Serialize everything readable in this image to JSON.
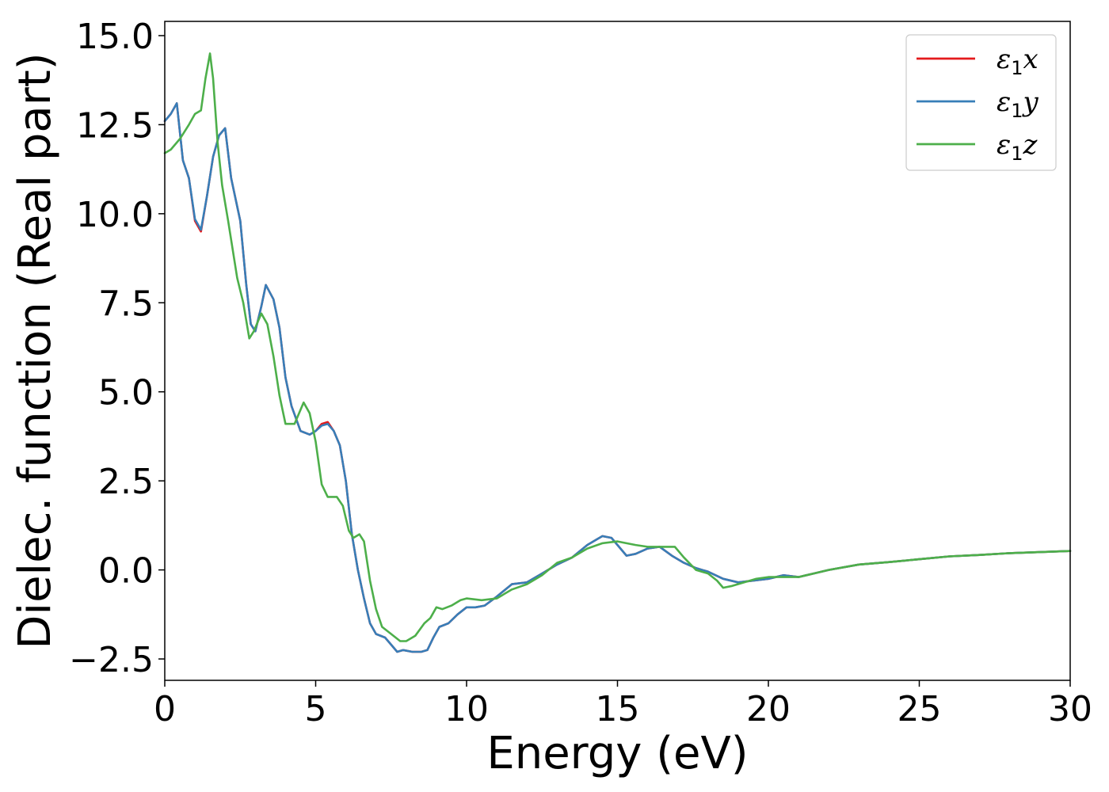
{
  "chart_data": {
    "type": "line",
    "xlabel": "Energy (eV)",
    "ylabel": "Dielec. function (Real part)",
    "xlim": [
      0,
      30
    ],
    "ylim": [
      -3.1,
      15.4
    ],
    "xticks": [
      0,
      5,
      10,
      15,
      20,
      25,
      30
    ],
    "xtick_labels": [
      "0",
      "5",
      "10",
      "15",
      "20",
      "25",
      "30"
    ],
    "yticks": [
      -2.5,
      0.0,
      2.5,
      5.0,
      7.5,
      10.0,
      12.5,
      15.0
    ],
    "ytick_labels": [
      "−2.5",
      "0.0",
      "2.5",
      "5.0",
      "7.5",
      "10.0",
      "12.5",
      "15.0"
    ],
    "grid": false,
    "legend_position": "top-right",
    "series": [
      {
        "name": "ε₁x",
        "legend_base": "ε",
        "legend_sub": "1",
        "legend_var": "x",
        "color": "#e41a1c",
        "x": [
          0,
          0.2,
          0.4,
          0.6,
          0.8,
          1.0,
          1.2,
          1.4,
          1.6,
          1.8,
          2.0,
          2.2,
          2.5,
          2.7,
          2.85,
          3.0,
          3.2,
          3.35,
          3.6,
          3.8,
          4.0,
          4.2,
          4.5,
          4.8,
          5.0,
          5.2,
          5.4,
          5.6,
          5.8,
          6.0,
          6.2,
          6.4,
          6.6,
          6.8,
          7.0,
          7.3,
          7.5,
          7.7,
          7.9,
          8.2,
          8.5,
          8.7,
          8.9,
          9.1,
          9.4,
          9.7,
          10.0,
          10.3,
          10.6,
          11.0,
          11.5,
          12.0,
          12.5,
          13.0,
          13.5,
          14.0,
          14.3,
          14.5,
          14.8,
          15.0,
          15.3,
          15.6,
          16.0,
          16.4,
          16.8,
          17.2,
          17.6,
          18.0,
          18.5,
          19.0,
          19.5,
          20.0,
          20.5,
          21.0,
          21.5,
          22.0,
          23.0,
          24.0,
          25.0,
          26.0,
          27.0,
          28.0,
          29.0,
          30.0
        ],
        "y": [
          12.6,
          12.8,
          13.1,
          11.5,
          11.0,
          9.8,
          9.5,
          10.5,
          11.6,
          12.2,
          12.4,
          11.0,
          9.8,
          8.0,
          6.9,
          6.7,
          7.4,
          8.0,
          7.6,
          6.8,
          5.4,
          4.6,
          3.9,
          3.8,
          3.9,
          4.1,
          4.15,
          3.9,
          3.5,
          2.5,
          1.0,
          0.0,
          -0.8,
          -1.5,
          -1.8,
          -1.9,
          -2.1,
          -2.3,
          -2.25,
          -2.3,
          -2.3,
          -2.25,
          -1.9,
          -1.6,
          -1.5,
          -1.25,
          -1.05,
          -1.05,
          -1.0,
          -0.75,
          -0.4,
          -0.35,
          -0.1,
          0.15,
          0.35,
          0.7,
          0.85,
          0.95,
          0.9,
          0.7,
          0.4,
          0.45,
          0.6,
          0.65,
          0.4,
          0.2,
          0.05,
          -0.05,
          -0.25,
          -0.35,
          -0.3,
          -0.25,
          -0.15,
          -0.2,
          -0.1,
          0.0,
          0.15,
          0.22,
          0.3,
          0.38,
          0.42,
          0.47,
          0.5,
          0.53
        ]
      },
      {
        "name": "ε₁y",
        "legend_base": "ε",
        "legend_sub": "1",
        "legend_var": "y",
        "color": "#377eb8",
        "x": [
          0,
          0.2,
          0.4,
          0.6,
          0.8,
          1.0,
          1.2,
          1.4,
          1.6,
          1.8,
          2.0,
          2.2,
          2.5,
          2.7,
          2.85,
          3.0,
          3.2,
          3.35,
          3.6,
          3.8,
          4.0,
          4.2,
          4.5,
          4.8,
          5.0,
          5.2,
          5.4,
          5.6,
          5.8,
          6.0,
          6.2,
          6.4,
          6.6,
          6.8,
          7.0,
          7.3,
          7.5,
          7.7,
          7.9,
          8.2,
          8.5,
          8.7,
          8.9,
          9.1,
          9.4,
          9.7,
          10.0,
          10.3,
          10.6,
          11.0,
          11.5,
          12.0,
          12.5,
          13.0,
          13.5,
          14.0,
          14.3,
          14.5,
          14.8,
          15.0,
          15.3,
          15.6,
          16.0,
          16.4,
          16.8,
          17.2,
          17.6,
          18.0,
          18.5,
          19.0,
          19.5,
          20.0,
          20.5,
          21.0,
          21.5,
          22.0,
          23.0,
          24.0,
          25.0,
          26.0,
          27.0,
          28.0,
          29.0,
          30.0
        ],
        "y": [
          12.6,
          12.8,
          13.1,
          11.5,
          11.0,
          9.85,
          9.55,
          10.5,
          11.6,
          12.2,
          12.4,
          11.0,
          9.8,
          8.0,
          6.9,
          6.7,
          7.4,
          8.0,
          7.6,
          6.8,
          5.4,
          4.6,
          3.9,
          3.8,
          3.9,
          4.05,
          4.1,
          3.9,
          3.5,
          2.5,
          1.0,
          0.0,
          -0.8,
          -1.5,
          -1.8,
          -1.9,
          -2.1,
          -2.3,
          -2.25,
          -2.3,
          -2.3,
          -2.25,
          -1.9,
          -1.6,
          -1.5,
          -1.25,
          -1.05,
          -1.05,
          -1.0,
          -0.75,
          -0.4,
          -0.35,
          -0.1,
          0.15,
          0.35,
          0.7,
          0.85,
          0.95,
          0.9,
          0.7,
          0.4,
          0.45,
          0.6,
          0.65,
          0.4,
          0.2,
          0.05,
          -0.05,
          -0.25,
          -0.35,
          -0.3,
          -0.25,
          -0.15,
          -0.2,
          -0.1,
          0.0,
          0.15,
          0.22,
          0.3,
          0.38,
          0.42,
          0.47,
          0.5,
          0.53
        ]
      },
      {
        "name": "ε₁z",
        "legend_base": "ε",
        "legend_sub": "1",
        "legend_var": "z",
        "color": "#4daf4a",
        "x": [
          0,
          0.2,
          0.5,
          0.8,
          1.0,
          1.2,
          1.35,
          1.5,
          1.6,
          1.75,
          1.9,
          2.1,
          2.4,
          2.6,
          2.8,
          2.95,
          3.2,
          3.4,
          3.6,
          3.8,
          4.0,
          4.3,
          4.6,
          4.8,
          5.0,
          5.2,
          5.4,
          5.7,
          5.9,
          6.1,
          6.25,
          6.45,
          6.6,
          6.8,
          7.0,
          7.2,
          7.5,
          7.8,
          8.0,
          8.3,
          8.6,
          8.8,
          9.0,
          9.2,
          9.5,
          9.8,
          10.0,
          10.5,
          11.0,
          11.5,
          12.0,
          12.5,
          13.0,
          13.5,
          14.0,
          14.5,
          15.0,
          15.3,
          15.6,
          16.0,
          16.5,
          16.9,
          17.2,
          17.6,
          18.0,
          18.3,
          18.5,
          18.8,
          19.2,
          19.6,
          20.0,
          20.5,
          21.0,
          21.5,
          22.0,
          23.0,
          24.0,
          25.0,
          26.0,
          27.0,
          28.0,
          29.0,
          30.0
        ],
        "y": [
          11.7,
          11.8,
          12.1,
          12.5,
          12.8,
          12.9,
          13.8,
          14.5,
          13.8,
          12.0,
          10.8,
          9.8,
          8.2,
          7.5,
          6.5,
          6.7,
          7.2,
          6.9,
          6.0,
          4.9,
          4.1,
          4.1,
          4.7,
          4.4,
          3.6,
          2.4,
          2.05,
          2.05,
          1.8,
          1.1,
          0.9,
          1.0,
          0.8,
          -0.3,
          -1.1,
          -1.6,
          -1.8,
          -2.0,
          -2.0,
          -1.85,
          -1.5,
          -1.35,
          -1.05,
          -1.1,
          -1.0,
          -0.85,
          -0.8,
          -0.85,
          -0.8,
          -0.55,
          -0.4,
          -0.15,
          0.2,
          0.35,
          0.6,
          0.75,
          0.8,
          0.75,
          0.7,
          0.65,
          0.65,
          0.65,
          0.35,
          0.0,
          -0.1,
          -0.3,
          -0.5,
          -0.45,
          -0.35,
          -0.25,
          -0.2,
          -0.2,
          -0.2,
          -0.1,
          0.0,
          0.15,
          0.22,
          0.3,
          0.38,
          0.42,
          0.47,
          0.5,
          0.53
        ]
      }
    ]
  }
}
